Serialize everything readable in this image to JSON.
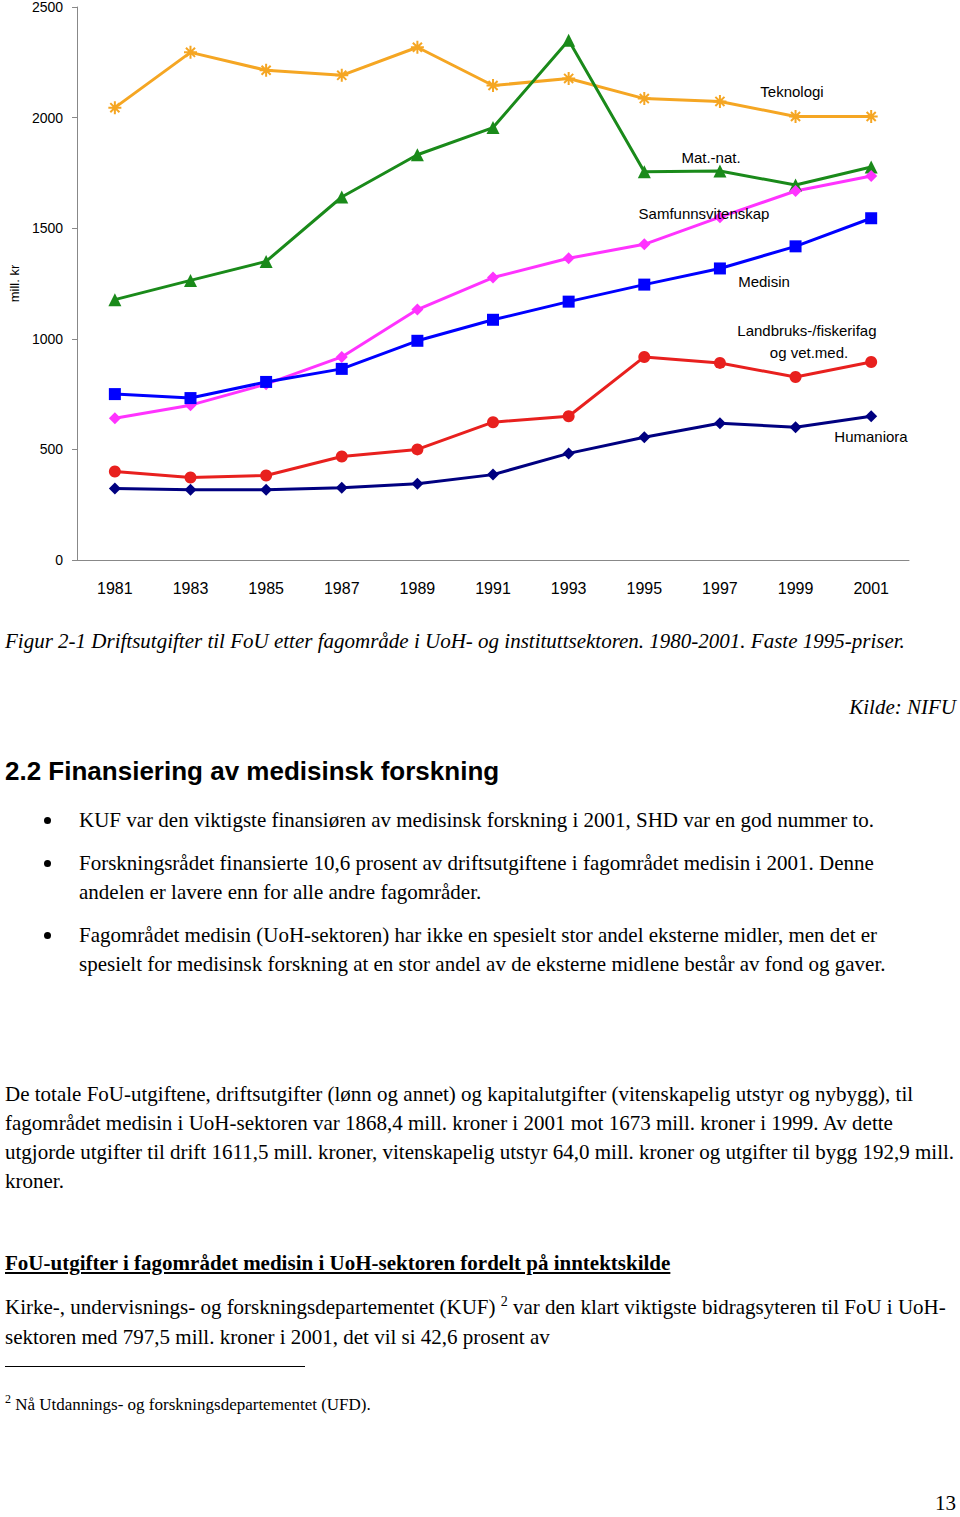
{
  "chart_data": {
    "type": "line",
    "y_label": "mill. kr",
    "categories": [
      "1981",
      "1983",
      "1985",
      "1987",
      "1989",
      "1991",
      "1993",
      "1995",
      "1997",
      "1999",
      "2001"
    ],
    "ylim": [
      0,
      2500
    ],
    "yticks": [
      0,
      500,
      1000,
      1500,
      2000,
      2500
    ],
    "grid": false,
    "series": [
      {
        "name": "Teknologi",
        "color": "#F5A623",
        "marker": "asterisk",
        "values": [
          2045,
          2295,
          2214,
          2191,
          2318,
          2145,
          2177,
          2086,
          2073,
          2005,
          2005
        ]
      },
      {
        "name": "Mat.-nat.",
        "color": "#1A8A1A",
        "marker": "triangle",
        "values": [
          1177,
          1264,
          1350,
          1641,
          1832,
          1955,
          2350,
          1755,
          1759,
          1695,
          1777
        ]
      },
      {
        "name": "Samfunnsvitenskap",
        "color": "#FF33FF",
        "marker": "diamond",
        "values": [
          641,
          700,
          795,
          918,
          1132,
          1277,
          1364,
          1427,
          1550,
          1668,
          1736
        ]
      },
      {
        "name": "Medisin",
        "color": "#0000FF",
        "marker": "square",
        "values": [
          750,
          732,
          805,
          864,
          991,
          1086,
          1168,
          1245,
          1318,
          1418,
          1545
        ]
      },
      {
        "name": "Landbruks-/fiskerifag og vet.med.",
        "color": "#E8201E",
        "marker": "circle",
        "values": [
          400,
          373,
          382,
          468,
          500,
          623,
          650,
          918,
          891,
          827,
          895
        ]
      },
      {
        "name": "Humaniora",
        "color": "#000080",
        "marker": "diamond",
        "values": [
          323,
          318,
          318,
          327,
          345,
          386,
          482,
          555,
          618,
          600,
          650
        ]
      }
    ]
  },
  "caption": "Figur 2-1 Driftsutgifter til FoU etter fagområde i UoH- og instituttsektoren. 1980-2001. Faste 1995-priser.",
  "source": "Kilde: NIFU",
  "section": {
    "heading": "2.2 Finansiering av medisinsk forskning",
    "bullets": [
      "KUF var den viktigste finansiøren av medisinsk forskning i 2001, SHD var en god nummer to.",
      "Forskningsrådet finansierte 10,6 prosent av driftsutgiftene i fagområdet medisin i 2001. Denne andelen er lavere enn for alle andre fagområder.",
      "Fagområdet medisin (UoH-sektoren) har ikke en spesielt stor andel eksterne midler, men det er spesielt for medisinsk forskning at en stor andel av de eksterne midlene består av fond og gaver."
    ],
    "paragraph": "De totale FoU-utgiftene, driftsutgifter (lønn og annet) og kapitalutgifter (vitenskapelig utstyr og nybygg), til fagområdet medisin i UoH-sektoren var 1868,4 mill. kroner i 2001 mot 1673 mill. kroner i 1999. Av dette utgjorde utgifter til drift 1611,5 mill. kroner, vitenskapelig utstyr 64,0 mill. kroner og utgifter til bygg 192,9 mill. kroner.",
    "subheading": "FoU-utgifter i fagområdet medisin i UoH-sektoren fordelt på inntektskilde",
    "paragraph2": {
      "text_before": "Kirke-, undervisnings- og forskningsdepartementet (KUF)",
      "footnote_ref": "2",
      "text_after": " var den klart viktigste bidragsyteren til FoU i UoH-sektoren med 797,5 mill. kroner i 2001, det vil si 42,6 prosent av"
    }
  },
  "footnote": {
    "marker": "2",
    "text": "Nå Utdannings- og forskningsdepartementet (UFD)."
  },
  "page_number": "13"
}
